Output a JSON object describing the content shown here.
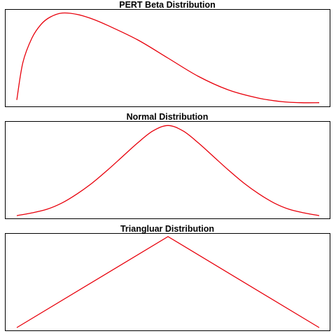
{
  "chart_data": [
    {
      "type": "line",
      "title": "PERT Beta Distribution",
      "xlabel": "",
      "ylabel": "",
      "xlim": [
        0,
        1
      ],
      "ylim": [
        0,
        1
      ],
      "series": [
        {
          "color": "#e8000b",
          "x": [
            0.0,
            0.02,
            0.05,
            0.08,
            0.11,
            0.15,
            0.2,
            0.25,
            0.3,
            0.4,
            0.5,
            0.6,
            0.7,
            0.8,
            0.88,
            0.94,
            1.0
          ],
          "y": [
            0.04,
            0.45,
            0.72,
            0.87,
            0.95,
            0.995,
            0.98,
            0.93,
            0.86,
            0.7,
            0.5,
            0.3,
            0.15,
            0.06,
            0.02,
            0.01,
            0.01
          ]
        }
      ]
    },
    {
      "type": "line",
      "title": "Normal Distribution",
      "xlabel": "",
      "ylabel": "",
      "xlim": [
        0,
        1
      ],
      "ylim": [
        0,
        1
      ],
      "series": [
        {
          "color": "#e8000b",
          "x": [
            0.0,
            0.05,
            0.1,
            0.15,
            0.2,
            0.25,
            0.3,
            0.35,
            0.4,
            0.45,
            0.5,
            0.55,
            0.6,
            0.65,
            0.7,
            0.75,
            0.8,
            0.85,
            0.9,
            0.95,
            1.0
          ],
          "y": [
            0.0,
            0.03,
            0.07,
            0.14,
            0.24,
            0.36,
            0.5,
            0.65,
            0.8,
            0.93,
            0.99,
            0.93,
            0.8,
            0.65,
            0.5,
            0.36,
            0.24,
            0.14,
            0.07,
            0.03,
            0.0
          ]
        }
      ]
    },
    {
      "type": "line",
      "title": "Triangluar Distribution",
      "xlabel": "",
      "ylabel": "",
      "xlim": [
        0,
        1
      ],
      "ylim": [
        0,
        1
      ],
      "series": [
        {
          "color": "#e8000b",
          "x": [
            0.0,
            0.5,
            1.0
          ],
          "y": [
            0.0,
            1.0,
            0.0
          ]
        }
      ]
    }
  ]
}
